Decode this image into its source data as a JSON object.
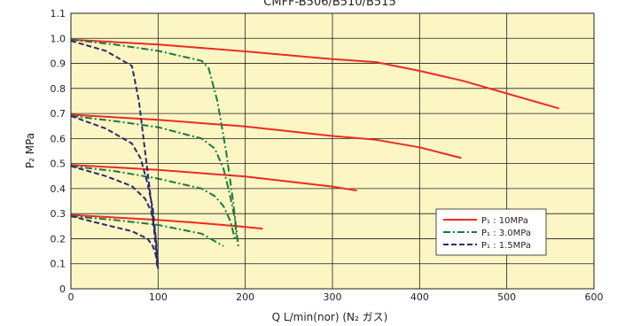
{
  "chart_data": {
    "type": "line",
    "title": "CMFF-B506/B510/B515",
    "xlabel": "Q L/min(nor) (N₂ ガス)",
    "ylabel": "P₂ MPa",
    "xlim": [
      0,
      600
    ],
    "ylim": [
      0,
      1.1
    ],
    "xticks": [
      "0",
      "100",
      "200",
      "300",
      "400",
      "500",
      "600"
    ],
    "yticks": [
      "0",
      "0.1",
      "0.2",
      "0.3",
      "0.4",
      "0.5",
      "0.6",
      "0.7",
      "0.8",
      "0.9",
      "1.0",
      "1.1"
    ],
    "grid": true,
    "legend_position": "bottom-right",
    "colors": {
      "plot_bg": "#fcf6c4",
      "grid": "#231f20",
      "s10": "#ee2a24",
      "s30": "#1a7a3c",
      "s15": "#2c2a6c"
    },
    "series": [
      {
        "name": "P₁ : 10MPa",
        "style": "solid",
        "curves": [
          {
            "x": [
              0,
              100,
              200,
              300,
              350,
              400,
              450,
              500,
              560
            ],
            "y": [
              0.995,
              0.975,
              0.948,
              0.917,
              0.905,
              0.87,
              0.83,
              0.78,
              0.72
            ]
          },
          {
            "x": [
              0,
              100,
              200,
              300,
              350,
              400,
              448
            ],
            "y": [
              0.695,
              0.675,
              0.648,
              0.61,
              0.595,
              0.565,
              0.522
            ]
          },
          {
            "x": [
              0,
              100,
              200,
              300,
              328
            ],
            "y": [
              0.495,
              0.475,
              0.448,
              0.408,
              0.392
            ]
          },
          {
            "x": [
              0,
              100,
              150,
              190,
              220
            ],
            "y": [
              0.295,
              0.275,
              0.262,
              0.25,
              0.24
            ]
          }
        ]
      },
      {
        "name": "P₁ : 3.0MPa",
        "style": "dashdot",
        "curves": [
          {
            "x": [
              0,
              50,
              100,
              150,
              158,
              168,
              178,
              186,
              192
            ],
            "y": [
              0.995,
              0.975,
              0.95,
              0.91,
              0.88,
              0.75,
              0.55,
              0.35,
              0.17
            ]
          },
          {
            "x": [
              0,
              50,
              100,
              150,
              165,
              175,
              182,
              188,
              190
            ],
            "y": [
              0.69,
              0.67,
              0.645,
              0.6,
              0.56,
              0.48,
              0.38,
              0.28,
              0.2
            ]
          },
          {
            "x": [
              0,
              50,
              100,
              150,
              165,
              175,
              183,
              188
            ],
            "y": [
              0.49,
              0.47,
              0.44,
              0.4,
              0.37,
              0.33,
              0.27,
              0.2
            ]
          },
          {
            "x": [
              0,
              50,
              100,
              150,
              175
            ],
            "y": [
              0.29,
              0.275,
              0.255,
              0.22,
              0.17
            ]
          }
        ]
      },
      {
        "name": "P₁ : 1.5MPa",
        "style": "dashed",
        "curves": [
          {
            "x": [
              0,
              40,
              70,
              78,
              85,
              92,
              97,
              99
            ],
            "y": [
              0.99,
              0.95,
              0.89,
              0.75,
              0.55,
              0.35,
              0.18,
              0.08
            ]
          },
          {
            "x": [
              0,
              40,
              70,
              80,
              88,
              94,
              98,
              99
            ],
            "y": [
              0.69,
              0.64,
              0.58,
              0.52,
              0.42,
              0.32,
              0.18,
              0.1
            ]
          },
          {
            "x": [
              0,
              40,
              70,
              85,
              92,
              96,
              99,
              100
            ],
            "y": [
              0.49,
              0.45,
              0.41,
              0.36,
              0.31,
              0.24,
              0.15,
              0.08
            ]
          },
          {
            "x": [
              0,
              40,
              70,
              88,
              94,
              97,
              98
            ],
            "y": [
              0.29,
              0.255,
              0.23,
              0.2,
              0.17,
              0.14,
              0.12
            ]
          }
        ]
      }
    ]
  }
}
